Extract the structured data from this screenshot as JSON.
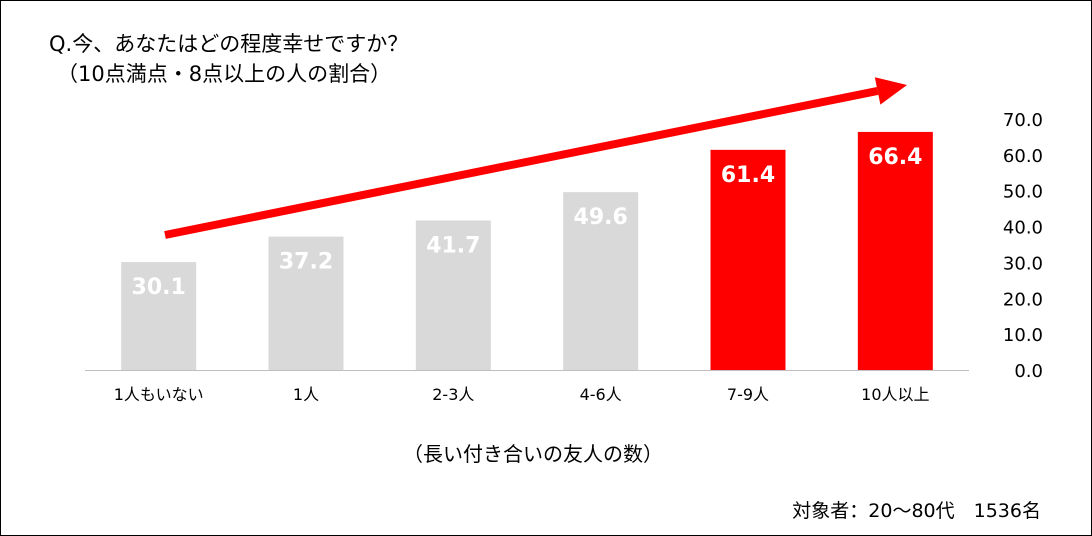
{
  "colors": {
    "bar_default": "#d9d9d9",
    "bar_highlight": "#ff0000",
    "trend_arrow": "#ff0000",
    "label_on_bar": "#ffffff"
  },
  "chart_data": {
    "type": "bar",
    "title": "Q.今、あなたはどの程度幸せですか？",
    "subtitle": "（10点満点・8点以上の人の割合）",
    "categories": [
      "1人もいない",
      "1人",
      "2-3人",
      "4-6人",
      "7-9人",
      "10人以上"
    ],
    "values": [
      30.1,
      37.2,
      41.7,
      49.6,
      61.4,
      66.4
    ],
    "value_labels": [
      "30.1",
      "37.2",
      "41.7",
      "49.6",
      "61.4",
      "66.4"
    ],
    "highlighted": [
      false,
      false,
      false,
      false,
      true,
      true
    ],
    "xlabel": "（長い付き合いの友人の数）",
    "ylabel": "",
    "ylim": [
      0,
      70
    ],
    "yaxis_position": "right",
    "yticks": [
      "0.0",
      "10.0",
      "20.0",
      "30.0",
      "40.0",
      "50.0",
      "60.0",
      "70.0"
    ],
    "grid": false,
    "trend_arrow": true
  },
  "footnote": "対象者：20～80代　1536名"
}
